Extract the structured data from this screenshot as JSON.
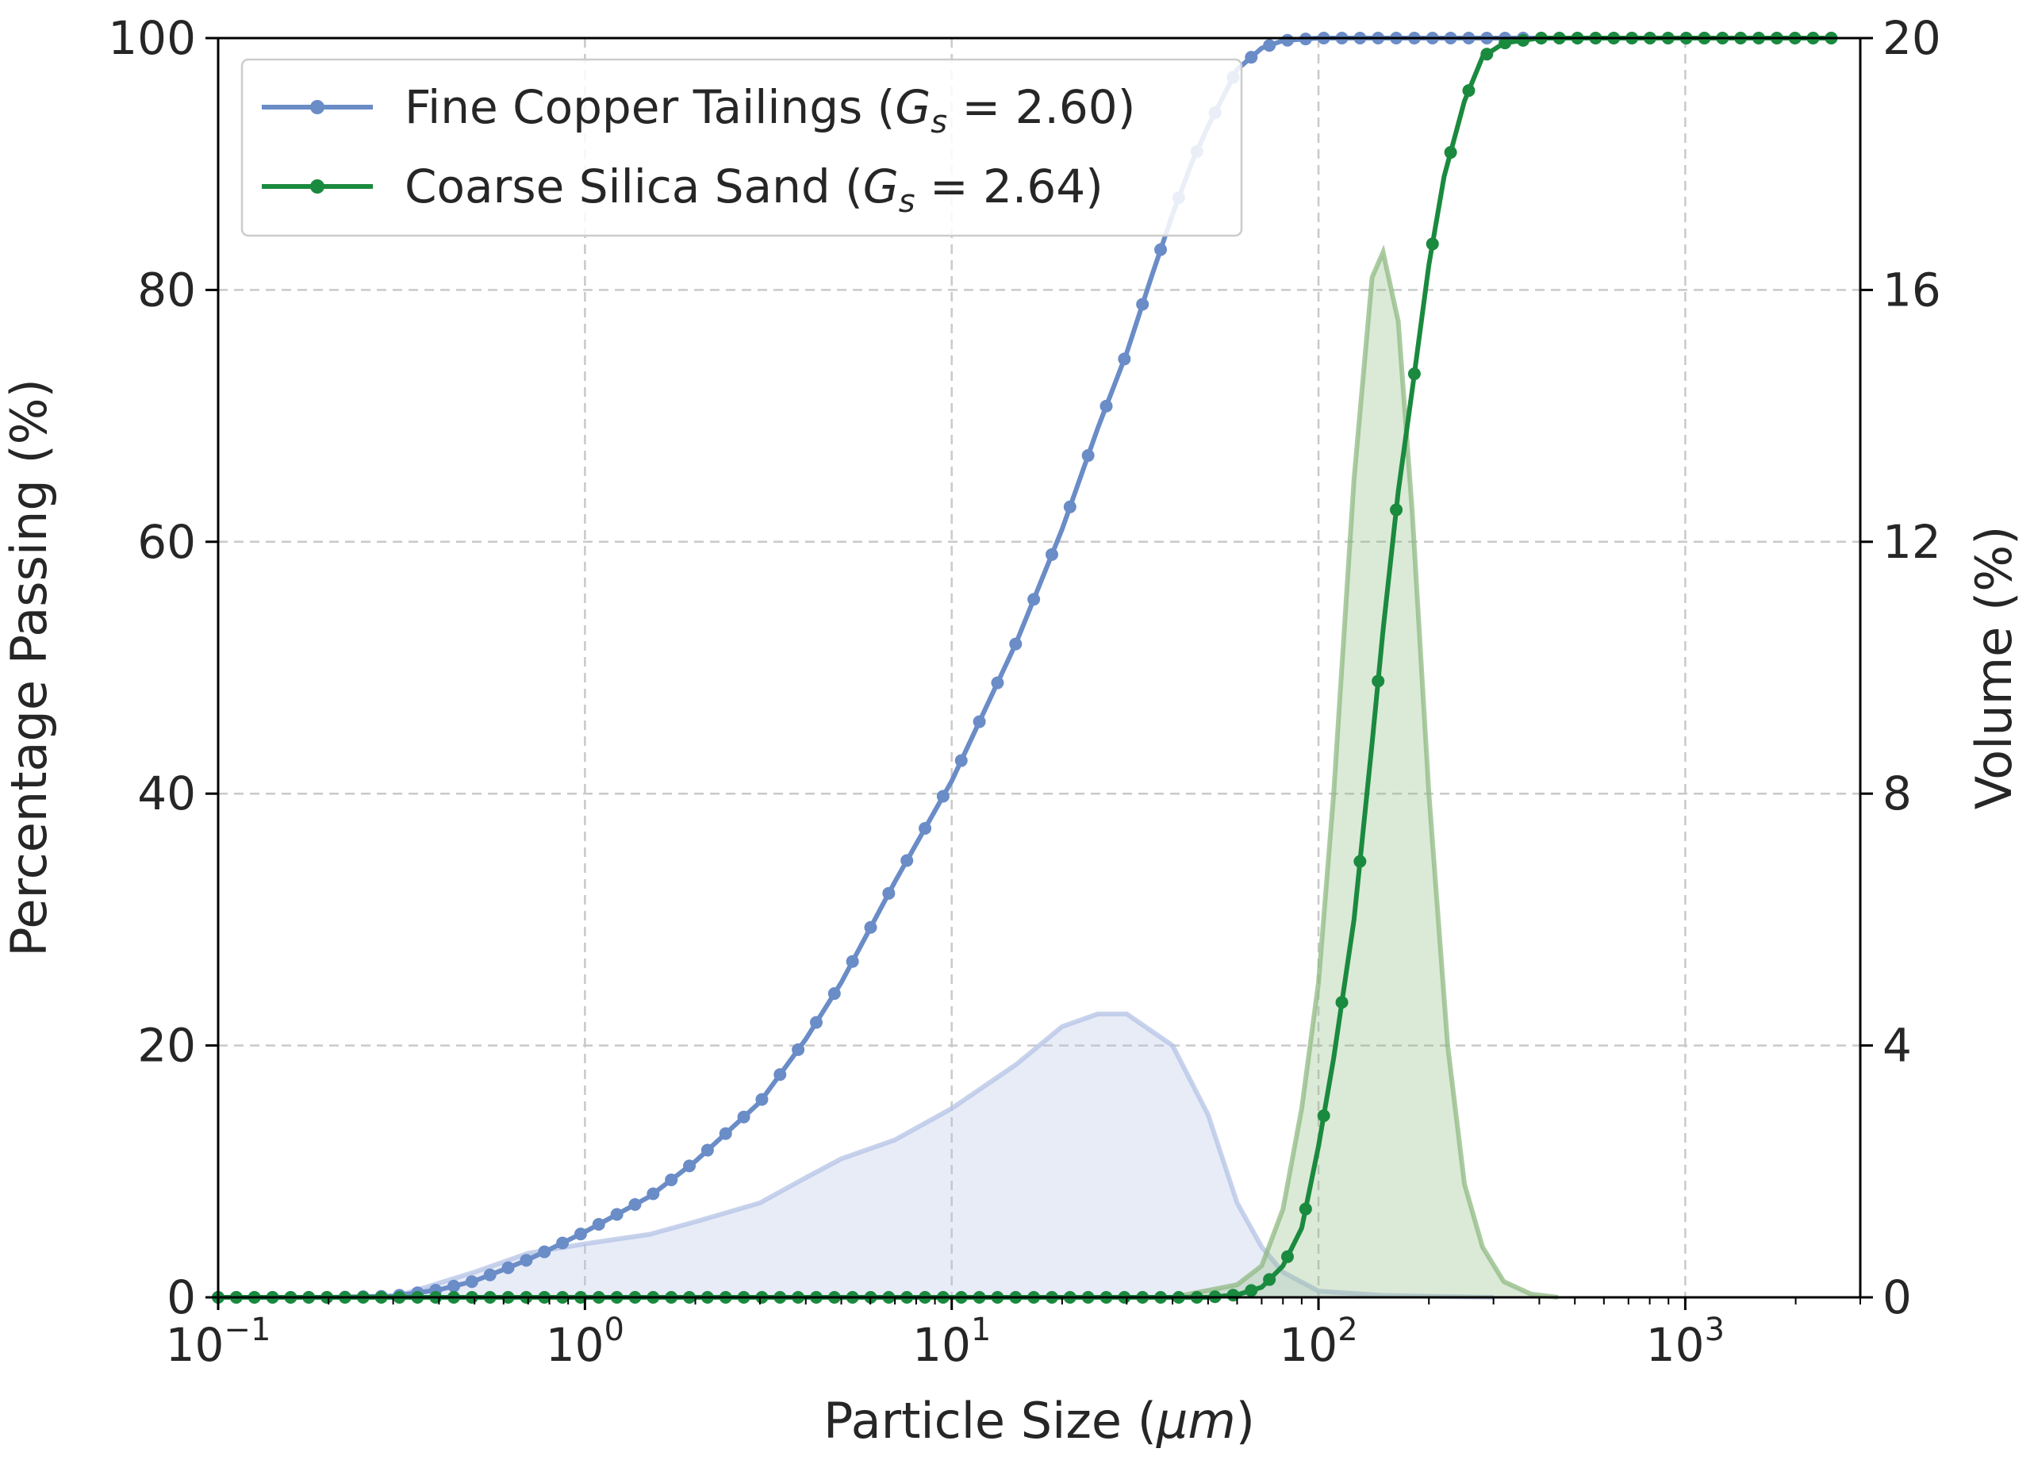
{
  "chart_data": {
    "type": "line",
    "xlabel_main": "Particle Size (",
    "xlabel_unit": "μm",
    "xlabel_close": ")",
    "ylabel_left": "Percentage Passing (%)",
    "ylabel_right": "Volume (%)",
    "x_scale": "log",
    "xlim": [
      0.1,
      3000
    ],
    "ylim_left": [
      0,
      100
    ],
    "ylim_right": [
      0,
      20
    ],
    "x_ticks": [
      {
        "value": 0.1,
        "base": "10",
        "exp": "−1"
      },
      {
        "value": 1,
        "base": "10",
        "exp": "0"
      },
      {
        "value": 10,
        "base": "10",
        "exp": "1"
      },
      {
        "value": 100,
        "base": "10",
        "exp": "2"
      },
      {
        "value": 1000,
        "base": "10",
        "exp": "3"
      }
    ],
    "y_left_ticks": [
      "0",
      "20",
      "40",
      "60",
      "80",
      "100"
    ],
    "y_right_ticks": [
      "0",
      "4",
      "8",
      "12",
      "16",
      "20"
    ],
    "grid": true,
    "legend_placement": "top-left",
    "legend": [
      {
        "prefix": "Fine Copper Tailings (",
        "var": "G",
        "sub": "s",
        "suffix": " = 2.60)",
        "color": "#6a8cc7"
      },
      {
        "prefix": "Coarse Silica Sand (",
        "var": "G",
        "sub": "s",
        "suffix": " = 2.64)",
        "color": "#1a8a3e"
      }
    ],
    "cumulative_series": [
      {
        "name": "Fine Copper Tailings",
        "color": "#6a8cc7",
        "points": [
          [
            0.1,
            0
          ],
          [
            0.2,
            0
          ],
          [
            0.3,
            0.1
          ],
          [
            0.4,
            0.6
          ],
          [
            0.5,
            1.3
          ],
          [
            0.6,
            2.2
          ],
          [
            0.7,
            3.0
          ],
          [
            0.8,
            3.8
          ],
          [
            1.0,
            5.2
          ],
          [
            1.5,
            8.0
          ],
          [
            2,
            10.8
          ],
          [
            3,
            15.5
          ],
          [
            4,
            20.5
          ],
          [
            5,
            25.0
          ],
          [
            7,
            33.0
          ],
          [
            10,
            41.0
          ],
          [
            15,
            52.0
          ],
          [
            20,
            61.0
          ],
          [
            25,
            69.0
          ],
          [
            30,
            75.0
          ],
          [
            35,
            81.0
          ],
          [
            40,
            86.0
          ],
          [
            45,
            90.0
          ],
          [
            50,
            93.0
          ],
          [
            60,
            97.5
          ],
          [
            70,
            99.2
          ],
          [
            80,
            99.8
          ],
          [
            100,
            100
          ],
          [
            200,
            100
          ],
          [
            500,
            100
          ],
          [
            1000,
            100
          ],
          [
            2500,
            100
          ]
        ]
      },
      {
        "name": "Coarse Silica Sand",
        "color": "#1a8a3e",
        "points": [
          [
            0.1,
            0
          ],
          [
            1,
            0
          ],
          [
            10,
            0
          ],
          [
            50,
            0
          ],
          [
            60,
            0.2
          ],
          [
            70,
            0.8
          ],
          [
            80,
            2.5
          ],
          [
            90,
            5.5
          ],
          [
            100,
            12.0
          ],
          [
            110,
            19.0
          ],
          [
            125,
            30.0
          ],
          [
            140,
            44.0
          ],
          [
            150,
            53.0
          ],
          [
            165,
            64.0
          ],
          [
            180,
            72.0
          ],
          [
            200,
            82.0
          ],
          [
            220,
            89.0
          ],
          [
            250,
            95.0
          ],
          [
            280,
            98.5
          ],
          [
            320,
            99.6
          ],
          [
            400,
            100
          ],
          [
            700,
            100
          ],
          [
            1000,
            100
          ],
          [
            2500,
            100
          ]
        ]
      }
    ],
    "volume_series": [
      {
        "name": "Fine Copper Tailings volume",
        "color": "#b4c3e6",
        "points": [
          [
            0.3,
            0
          ],
          [
            0.5,
            0.4
          ],
          [
            0.7,
            0.7
          ],
          [
            1.0,
            0.85
          ],
          [
            1.5,
            1.0
          ],
          [
            2,
            1.2
          ],
          [
            3,
            1.5
          ],
          [
            4,
            1.9
          ],
          [
            5,
            2.2
          ],
          [
            7,
            2.5
          ],
          [
            10,
            3.0
          ],
          [
            15,
            3.7
          ],
          [
            20,
            4.3
          ],
          [
            25,
            4.5
          ],
          [
            30,
            4.5
          ],
          [
            40,
            4.0
          ],
          [
            50,
            2.9
          ],
          [
            60,
            1.5
          ],
          [
            70,
            0.8
          ],
          [
            80,
            0.4
          ],
          [
            100,
            0.1
          ],
          [
            150,
            0.03
          ],
          [
            300,
            0
          ]
        ]
      },
      {
        "name": "Coarse Silica Sand volume",
        "color": "#8fba82",
        "points": [
          [
            40,
            0
          ],
          [
            60,
            0.2
          ],
          [
            70,
            0.5
          ],
          [
            80,
            1.4
          ],
          [
            90,
            3.0
          ],
          [
            100,
            5.0
          ],
          [
            110,
            8.0
          ],
          [
            125,
            13.0
          ],
          [
            140,
            16.2
          ],
          [
            150,
            16.6
          ],
          [
            165,
            15.5
          ],
          [
            180,
            12.5
          ],
          [
            200,
            8.0
          ],
          [
            225,
            4.0
          ],
          [
            250,
            1.8
          ],
          [
            280,
            0.8
          ],
          [
            320,
            0.25
          ],
          [
            380,
            0.05
          ],
          [
            450,
            0
          ]
        ]
      }
    ]
  }
}
